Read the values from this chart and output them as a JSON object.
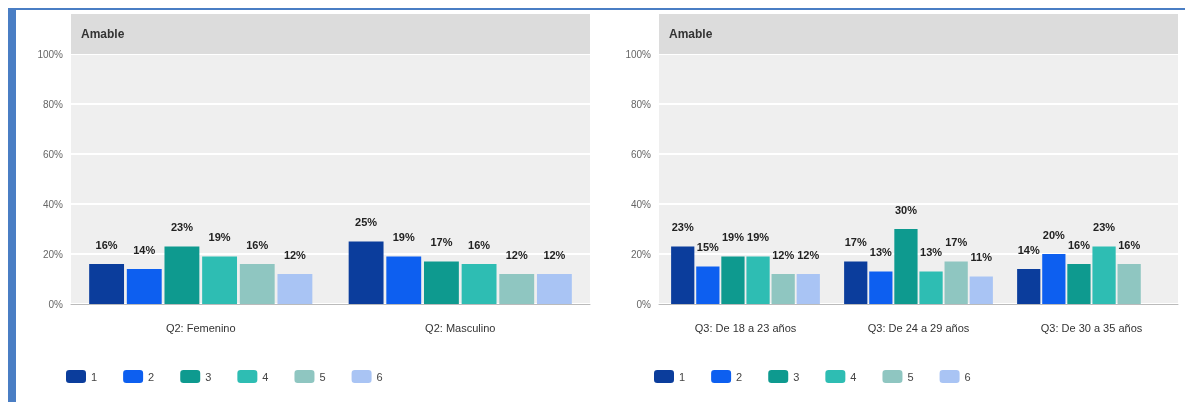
{
  "chart_data": [
    {
      "type": "bar",
      "title": "Amable",
      "categories": [
        "Q2: Femenino",
        "Q2: Masculino"
      ],
      "series": [
        {
          "name": "1",
          "color": "#0b3d9c",
          "values": [
            16,
            25
          ],
          "value_labels": [
            "16%",
            "25%"
          ]
        },
        {
          "name": "2",
          "color": "#0d5ff0",
          "values": [
            14,
            19
          ],
          "value_labels": [
            "14%",
            "19%"
          ]
        },
        {
          "name": "3",
          "color": "#0e9a8f",
          "values": [
            23,
            17
          ],
          "value_labels": [
            "23%",
            "17%"
          ]
        },
        {
          "name": "4",
          "color": "#2ebdb3",
          "values": [
            19,
            16
          ],
          "value_labels": [
            "19%",
            "16%"
          ]
        },
        {
          "name": "5",
          "color": "#8fc6c1",
          "values": [
            16,
            12
          ],
          "value_labels": [
            "16%",
            "12%"
          ]
        },
        {
          "name": "6",
          "color": "#a9c4f4",
          "values": [
            12,
            12
          ],
          "value_labels": [
            "12%",
            "12%"
          ]
        }
      ],
      "ylim": [
        0,
        100
      ],
      "yticks": [
        {
          "value": 0,
          "label": "0%"
        },
        {
          "value": 20,
          "label": "20%"
        },
        {
          "value": 40,
          "label": "40%"
        },
        {
          "value": 60,
          "label": "60%"
        },
        {
          "value": 80,
          "label": "80%"
        },
        {
          "value": 100,
          "label": "100%"
        }
      ],
      "grid": "y",
      "legend": "bottom left"
    },
    {
      "type": "bar",
      "title": "Amable",
      "categories": [
        "Q3: De 18 a 23 años",
        "Q3: De 24 a 29 años",
        "Q3: De 30 a 35 años"
      ],
      "series": [
        {
          "name": "1",
          "color": "#0b3d9c",
          "values": [
            23,
            17,
            14
          ],
          "value_labels": [
            "23%",
            "17%",
            "14%"
          ]
        },
        {
          "name": "2",
          "color": "#0d5ff0",
          "values": [
            15,
            13,
            20
          ],
          "value_labels": [
            "15%",
            "13%",
            "20%"
          ]
        },
        {
          "name": "3",
          "color": "#0e9a8f",
          "values": [
            19,
            30,
            16
          ],
          "value_labels": [
            "19%",
            "30%",
            "16%"
          ]
        },
        {
          "name": "4",
          "color": "#2ebdb3",
          "values": [
            19,
            13,
            23
          ],
          "value_labels": [
            "19%",
            "13%",
            "23%"
          ]
        },
        {
          "name": "5",
          "color": "#8fc6c1",
          "values": [
            12,
            17,
            16
          ],
          "value_labels": [
            "12%",
            "17%",
            "16%"
          ]
        },
        {
          "name": "6",
          "color": "#a9c4f4",
          "values": [
            12,
            11,
            null
          ],
          "value_labels": [
            "12%",
            "11%",
            null
          ]
        }
      ],
      "ylim": [
        0,
        100
      ],
      "yticks": [
        {
          "value": 0,
          "label": "0%"
        },
        {
          "value": 20,
          "label": "20%"
        },
        {
          "value": 40,
          "label": "40%"
        },
        {
          "value": 60,
          "label": "60%"
        },
        {
          "value": 80,
          "label": "80%"
        },
        {
          "value": 100,
          "label": "100%"
        }
      ],
      "grid": "y",
      "legend": "bottom left"
    }
  ]
}
